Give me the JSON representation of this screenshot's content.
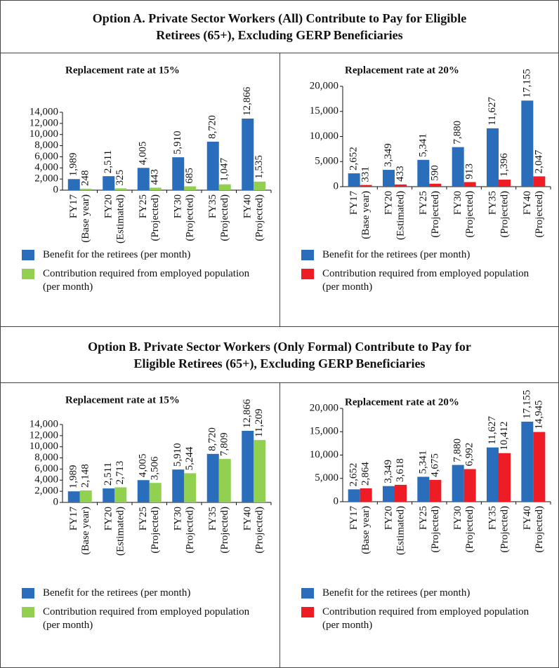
{
  "sections": [
    {
      "title": "Option A. Private Sector Workers (All) Contribute to Pay for Eligible Retirees (65+), Excluding GERP Beneficiaries"
    },
    {
      "title": "Option B. Private Sector Workers (Only Formal) Contribute to Pay for Eligible Retirees (65+), Excluding GERP Beneficiaries"
    }
  ],
  "chart_data": [
    {
      "type": "bar",
      "title": "Replacement rate at 15%",
      "categories": [
        [
          "FY17",
          "(Base year)"
        ],
        [
          "FY20",
          "(Estimated)"
        ],
        [
          "FY25",
          "(Projected)"
        ],
        [
          "FY30",
          "(Projected)"
        ],
        [
          "FY35",
          "(Projected)"
        ],
        [
          "FY40",
          "(Projected)"
        ]
      ],
      "series": [
        {
          "name": "Benefit for the retirees (per month)",
          "color": "#2a6ebb",
          "values": [
            1989,
            2511,
            4005,
            5910,
            8720,
            12866
          ],
          "value_labels": [
            "1,989",
            "2,511",
            "4,005",
            "5,910",
            "8,720",
            "12,866"
          ]
        },
        {
          "name": "Contribution required from employed population (per month)",
          "color": "#92d050",
          "values": [
            248,
            325,
            443,
            685,
            1047,
            1535
          ],
          "value_labels": [
            "248",
            "325",
            "443",
            "685",
            "1,047",
            "1,535"
          ]
        }
      ],
      "ylim": [
        0,
        14000
      ],
      "yticks": [
        0,
        {
          "value": 2000,
          "label": "2,000"
        },
        {
          "value": 4000,
          "label": "4,000"
        },
        {
          "value": 6000,
          "label": "6,000"
        },
        {
          "value": 8000,
          "label": "8,000"
        },
        {
          "value": 10000,
          "label": "10,000"
        },
        {
          "value": 12000,
          "label": "12,000"
        },
        {
          "value": 14000,
          "label": "14,000"
        }
      ]
    },
    {
      "type": "bar",
      "title": "Replacement rate at 20%",
      "categories": [
        [
          "FY17",
          "(Base year)"
        ],
        [
          "FY20",
          "(Estimated)"
        ],
        [
          "FY25",
          "(Projected)"
        ],
        [
          "FY30",
          "(Projected)"
        ],
        [
          "FY35",
          "(Projected)"
        ],
        [
          "FY40",
          "(Projected)"
        ]
      ],
      "series": [
        {
          "name": "Benefit for the retirees (per month)",
          "color": "#2a6ebb",
          "values": [
            2652,
            3349,
            5341,
            7880,
            11627,
            17155
          ],
          "value_labels": [
            "2,652",
            "3,349",
            "5,341",
            "7,880",
            "11,627",
            "17,155"
          ]
        },
        {
          "name": "Contribution required from employed population (per month)",
          "color": "#ee1c25",
          "values": [
            331,
            433,
            590,
            913,
            1396,
            2047
          ],
          "value_labels": [
            "331",
            "433",
            "590",
            "913",
            "1,396",
            "2,047"
          ]
        }
      ],
      "ylim": [
        0,
        20000
      ],
      "yticks": [
        0,
        {
          "value": 5000,
          "label": "5,000"
        },
        {
          "value": 10000,
          "label": "10,000"
        },
        {
          "value": 15000,
          "label": "15,000"
        },
        {
          "value": 20000,
          "label": "20,000"
        }
      ]
    },
    {
      "type": "bar",
      "title": "Replacement rate at 15%",
      "categories": [
        [
          "FY17",
          "(Base year)"
        ],
        [
          "FY20",
          "(Estimated)"
        ],
        [
          "FY25",
          "(Projected)"
        ],
        [
          "FY30",
          "(Projected)"
        ],
        [
          "FY35",
          "(Projected)"
        ],
        [
          "FY40",
          "(Projected)"
        ]
      ],
      "series": [
        {
          "name": "Benefit for the retirees (per month)",
          "color": "#2a6ebb",
          "values": [
            1989,
            2511,
            4005,
            5910,
            8720,
            12866
          ],
          "value_labels": [
            "1,989",
            "2,511",
            "4,005",
            "5,910",
            "8,720",
            "12,866"
          ]
        },
        {
          "name": "Contribution required from employed population (per month)",
          "color": "#92d050",
          "values": [
            2148,
            2713,
            3506,
            5244,
            7809,
            11209
          ],
          "value_labels": [
            "2,148",
            "2,713",
            "3,506",
            "5,244",
            "7,809",
            "11,209"
          ]
        }
      ],
      "ylim": [
        0,
        14000
      ],
      "yticks": [
        0,
        {
          "value": 2000,
          "label": "2,000"
        },
        {
          "value": 4000,
          "label": "4,000"
        },
        {
          "value": 6000,
          "label": "6,000"
        },
        {
          "value": 8000,
          "label": "8,000"
        },
        {
          "value": 10000,
          "label": "10,000"
        },
        {
          "value": 12000,
          "label": "12,000"
        },
        {
          "value": 14000,
          "label": "14,000"
        }
      ]
    },
    {
      "type": "bar",
      "title": "Replacement rate at 20%",
      "categories": [
        [
          "FY17",
          "(Base year)"
        ],
        [
          "FY20",
          "(Estimated)"
        ],
        [
          "FY25",
          "(Projected)"
        ],
        [
          "FY30",
          "(Projected)"
        ],
        [
          "FY35",
          "(Projected)"
        ],
        [
          "FY40",
          "(Projected)"
        ]
      ],
      "series": [
        {
          "name": "Benefit for the retirees (per month)",
          "color": "#2a6ebb",
          "values": [
            2652,
            3349,
            5341,
            7880,
            11627,
            17155
          ],
          "value_labels": [
            "2,652",
            "3,349",
            "5,341",
            "7,880",
            "11,627",
            "17,155"
          ]
        },
        {
          "name": "Contribution required from employed population (per month)",
          "color": "#ee1c25",
          "values": [
            2864,
            3618,
            4675,
            6992,
            10412,
            14945
          ],
          "value_labels": [
            "2,864",
            "3,618",
            "4,675",
            "6,992",
            "10,412",
            "14,945"
          ]
        }
      ],
      "ylim": [
        0,
        20000
      ],
      "yticks": [
        0,
        {
          "value": 5000,
          "label": "5,000"
        },
        {
          "value": 10000,
          "label": "10,000"
        },
        {
          "value": 15000,
          "label": "15,000"
        },
        {
          "value": 20000,
          "label": "20,000"
        }
      ]
    }
  ]
}
